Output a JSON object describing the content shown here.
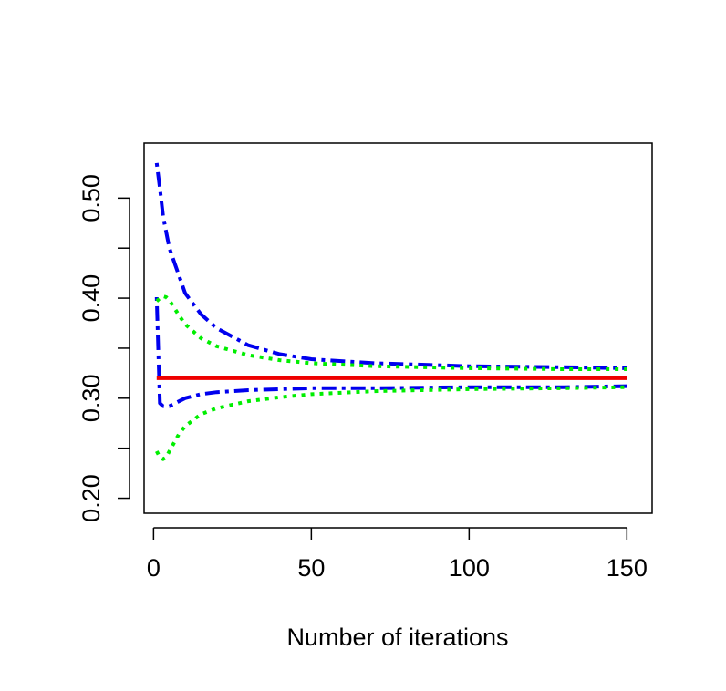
{
  "chart_data": {
    "type": "line",
    "title": "",
    "xlabel": "Number of iterations",
    "ylabel": "",
    "xlim": [
      -3,
      158
    ],
    "ylim": [
      0.185,
      0.555
    ],
    "x_ticks": [
      0,
      50,
      100,
      150
    ],
    "x_tick_labels": [
      "0",
      "50",
      "100",
      "150"
    ],
    "y_ticks": [
      0.2,
      0.25,
      0.3,
      0.35,
      0.4,
      0.45,
      0.5
    ],
    "y_tick_labels": [
      "0.20",
      "",
      "0.30",
      "",
      "0.40",
      "",
      "0.50"
    ],
    "grid": false,
    "legend": "none",
    "series": [
      {
        "style": "dotdash",
        "color": "#0000ee",
        "x": [
          1,
          2,
          3,
          5,
          10,
          15,
          20,
          30,
          40,
          50,
          70,
          100,
          130,
          150
        ],
        "y": [
          0.535,
          0.51,
          0.482,
          0.45,
          0.405,
          0.384,
          0.37,
          0.353,
          0.344,
          0.339,
          0.335,
          0.332,
          0.331,
          0.33
        ]
      },
      {
        "style": "dotdash",
        "color": "#0000ee",
        "x": [
          1,
          2,
          3,
          5,
          10,
          15,
          20,
          30,
          40,
          50,
          70,
          100,
          130,
          150
        ],
        "y": [
          0.401,
          0.295,
          0.292,
          0.292,
          0.3,
          0.304,
          0.306,
          0.308,
          0.309,
          0.31,
          0.31,
          0.311,
          0.311,
          0.312
        ]
      },
      {
        "style": "dotted",
        "color": "#00ee00",
        "x": [
          1,
          2,
          3,
          4,
          5,
          8,
          10,
          15,
          20,
          30,
          40,
          50,
          70,
          100,
          130,
          150
        ],
        "y": [
          0.397,
          0.4,
          0.402,
          0.401,
          0.398,
          0.383,
          0.374,
          0.36,
          0.352,
          0.343,
          0.338,
          0.335,
          0.332,
          0.33,
          0.329,
          0.329
        ]
      },
      {
        "style": "dotted",
        "color": "#00ee00",
        "x": [
          1,
          2,
          3,
          4,
          5,
          8,
          10,
          15,
          20,
          30,
          40,
          50,
          70,
          100,
          130,
          150
        ],
        "y": [
          0.247,
          0.241,
          0.239,
          0.241,
          0.247,
          0.264,
          0.272,
          0.284,
          0.29,
          0.297,
          0.301,
          0.304,
          0.307,
          0.309,
          0.31,
          0.311
        ]
      },
      {
        "style": "solid",
        "color": "#ee0000",
        "x": [
          1,
          150
        ],
        "y": [
          0.32,
          0.32
        ]
      }
    ]
  }
}
